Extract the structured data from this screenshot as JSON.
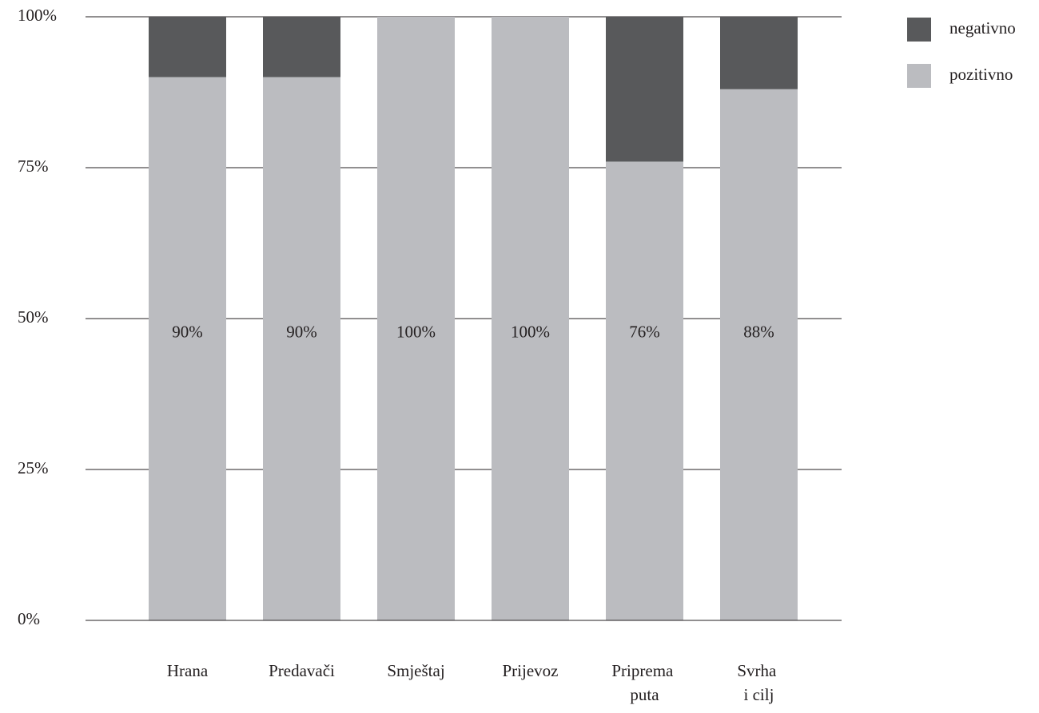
{
  "chart_data": {
    "type": "stacked_bar",
    "categories": [
      "Hrana",
      "Predavači",
      "Smještaj",
      "Prijevoz",
      "Priprema puta",
      "Svrha i cilj"
    ],
    "series": [
      {
        "name": "pozitivno",
        "color": "#bbbcc0",
        "values": [
          90,
          90,
          100,
          100,
          76,
          88
        ],
        "value_labels": [
          "90%",
          "90%",
          "100%",
          "100%",
          "76%",
          "88%"
        ]
      },
      {
        "name": "negativno",
        "color": "#58595b",
        "values": [
          10,
          10,
          0,
          0,
          24,
          12
        ]
      }
    ],
    "ylim": [
      0,
      100
    ],
    "yticks": [
      {
        "value": 0,
        "label": "0%"
      },
      {
        "value": 25,
        "label": "25%"
      },
      {
        "value": 50,
        "label": "50%"
      },
      {
        "value": 75,
        "label": "75%"
      },
      {
        "value": 100,
        "label": "100%"
      }
    ],
    "grid": true,
    "legend": "top-right"
  }
}
